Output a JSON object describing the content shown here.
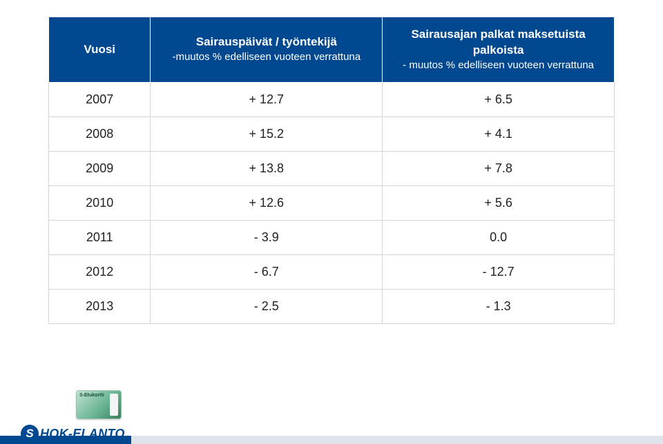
{
  "table": {
    "columns": [
      {
        "title": "Vuosi",
        "subtitle": ""
      },
      {
        "title": "Sairauspäivät / työntekijä",
        "subtitle": "-muutos % edelliseen vuoteen verrattuna"
      },
      {
        "title": "Sairausajan palkat maksetuista palkoista",
        "subtitle": "- muutos % edelliseen vuoteen verrattuna"
      }
    ],
    "rows": [
      {
        "year": "2007",
        "a": "+ 12.7",
        "b": "+ 6.5"
      },
      {
        "year": "2008",
        "a": "+ 15.2",
        "b": "+ 4.1"
      },
      {
        "year": "2009",
        "a": "+ 13.8",
        "b": "+ 7.8"
      },
      {
        "year": "2010",
        "a": "+ 12.6",
        "b": "+ 5.6"
      },
      {
        "year": "2011",
        "a": "- 3.9",
        "b": "0.0"
      },
      {
        "year": "2012",
        "a": "- 6.7",
        "b": "- 12.7"
      },
      {
        "year": "2013",
        "a": "- 2.5",
        "b": "- 1.3"
      }
    ],
    "header_bg": "#004990",
    "header_fg": "#ffffff",
    "cell_border": "#cfd6de",
    "body_font_size": 18,
    "header_font_size": 17
  },
  "footer": {
    "card_label": "S-Etukortti",
    "logo_text": "HOK-ELANTO",
    "blue": "#004990",
    "grey": "#dfe4ea"
  }
}
